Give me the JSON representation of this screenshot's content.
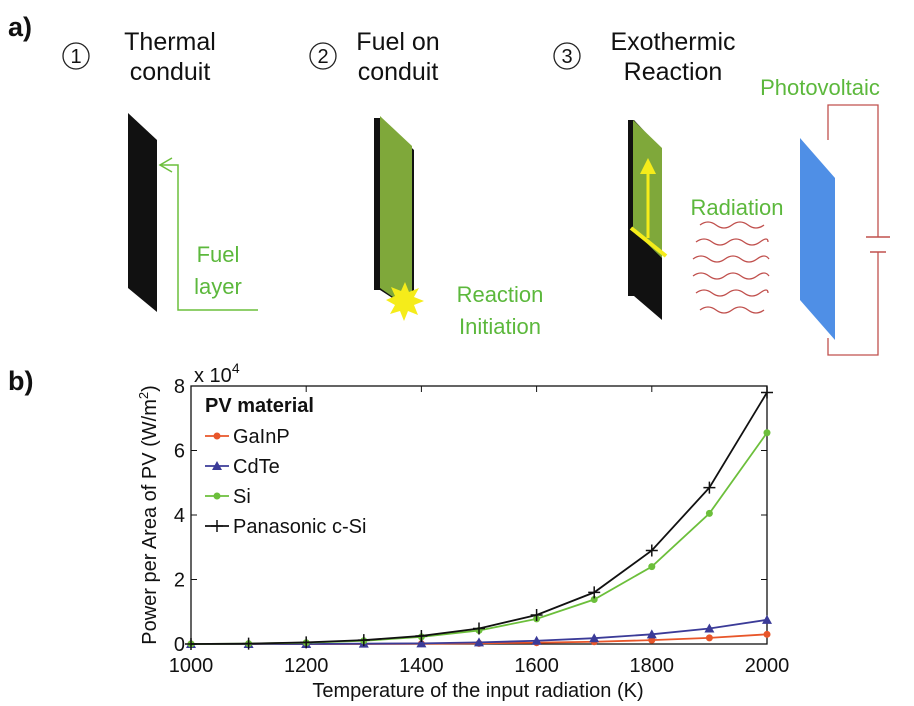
{
  "panel_a": {
    "panel_label": "a)",
    "steps": [
      {
        "number": "1",
        "title": [
          "Thermal",
          "conduit"
        ]
      },
      {
        "number": "2",
        "title": [
          "Fuel on",
          "conduit"
        ]
      },
      {
        "number": "3",
        "title": [
          "Exothermic",
          "Reaction"
        ]
      }
    ],
    "fuel_layer": [
      "Fuel",
      "layer"
    ],
    "reaction_initiation": [
      "Reaction",
      "Initiation"
    ],
    "radiation": "Radiation",
    "photovoltaic": "Photovoltaic"
  },
  "chart_data": {
    "type": "line",
    "panel_label": "b)",
    "x_label": "Temperature of the input radiation (K)",
    "y_label": {
      "main": "Power per Area of PV (W/m",
      "superscript": "2",
      "end": ")"
    },
    "y_multiplier": {
      "base": "x 10",
      "exponent": "4"
    },
    "legend_title": "PV material",
    "legend": "upper left",
    "x": [
      1000,
      1100,
      1200,
      1300,
      1400,
      1500,
      1600,
      1700,
      1800,
      1900,
      2000
    ],
    "xlim": [
      1000,
      2000
    ],
    "xticks": [
      1000,
      1200,
      1400,
      1600,
      1800,
      2000
    ],
    "ylim": [
      0,
      8
    ],
    "yticks": [
      0,
      2,
      4,
      6,
      8
    ],
    "series": [
      {
        "name": "GaInP",
        "color": "#e8562a",
        "marker": "circle",
        "values": [
          0,
          0,
          0,
          0,
          0.01,
          0.02,
          0.04,
          0.07,
          0.12,
          0.19,
          0.3
        ]
      },
      {
        "name": "CdTe",
        "color": "#3b3b98",
        "marker": "triangle",
        "values": [
          0,
          0,
          0,
          0.01,
          0.02,
          0.05,
          0.1,
          0.18,
          0.3,
          0.48,
          0.75
        ]
      },
      {
        "name": "Si",
        "color": "#6cbf3b",
        "marker": "circle",
        "values": [
          0,
          0.01,
          0.04,
          0.1,
          0.22,
          0.42,
          0.78,
          1.38,
          2.4,
          4.05,
          6.55
        ]
      },
      {
        "name": "Panasonic c-Si",
        "color": "#111111",
        "marker": "plus",
        "values": [
          0,
          0.01,
          0.05,
          0.12,
          0.25,
          0.48,
          0.9,
          1.6,
          2.9,
          4.85,
          7.8
        ]
      }
    ]
  }
}
